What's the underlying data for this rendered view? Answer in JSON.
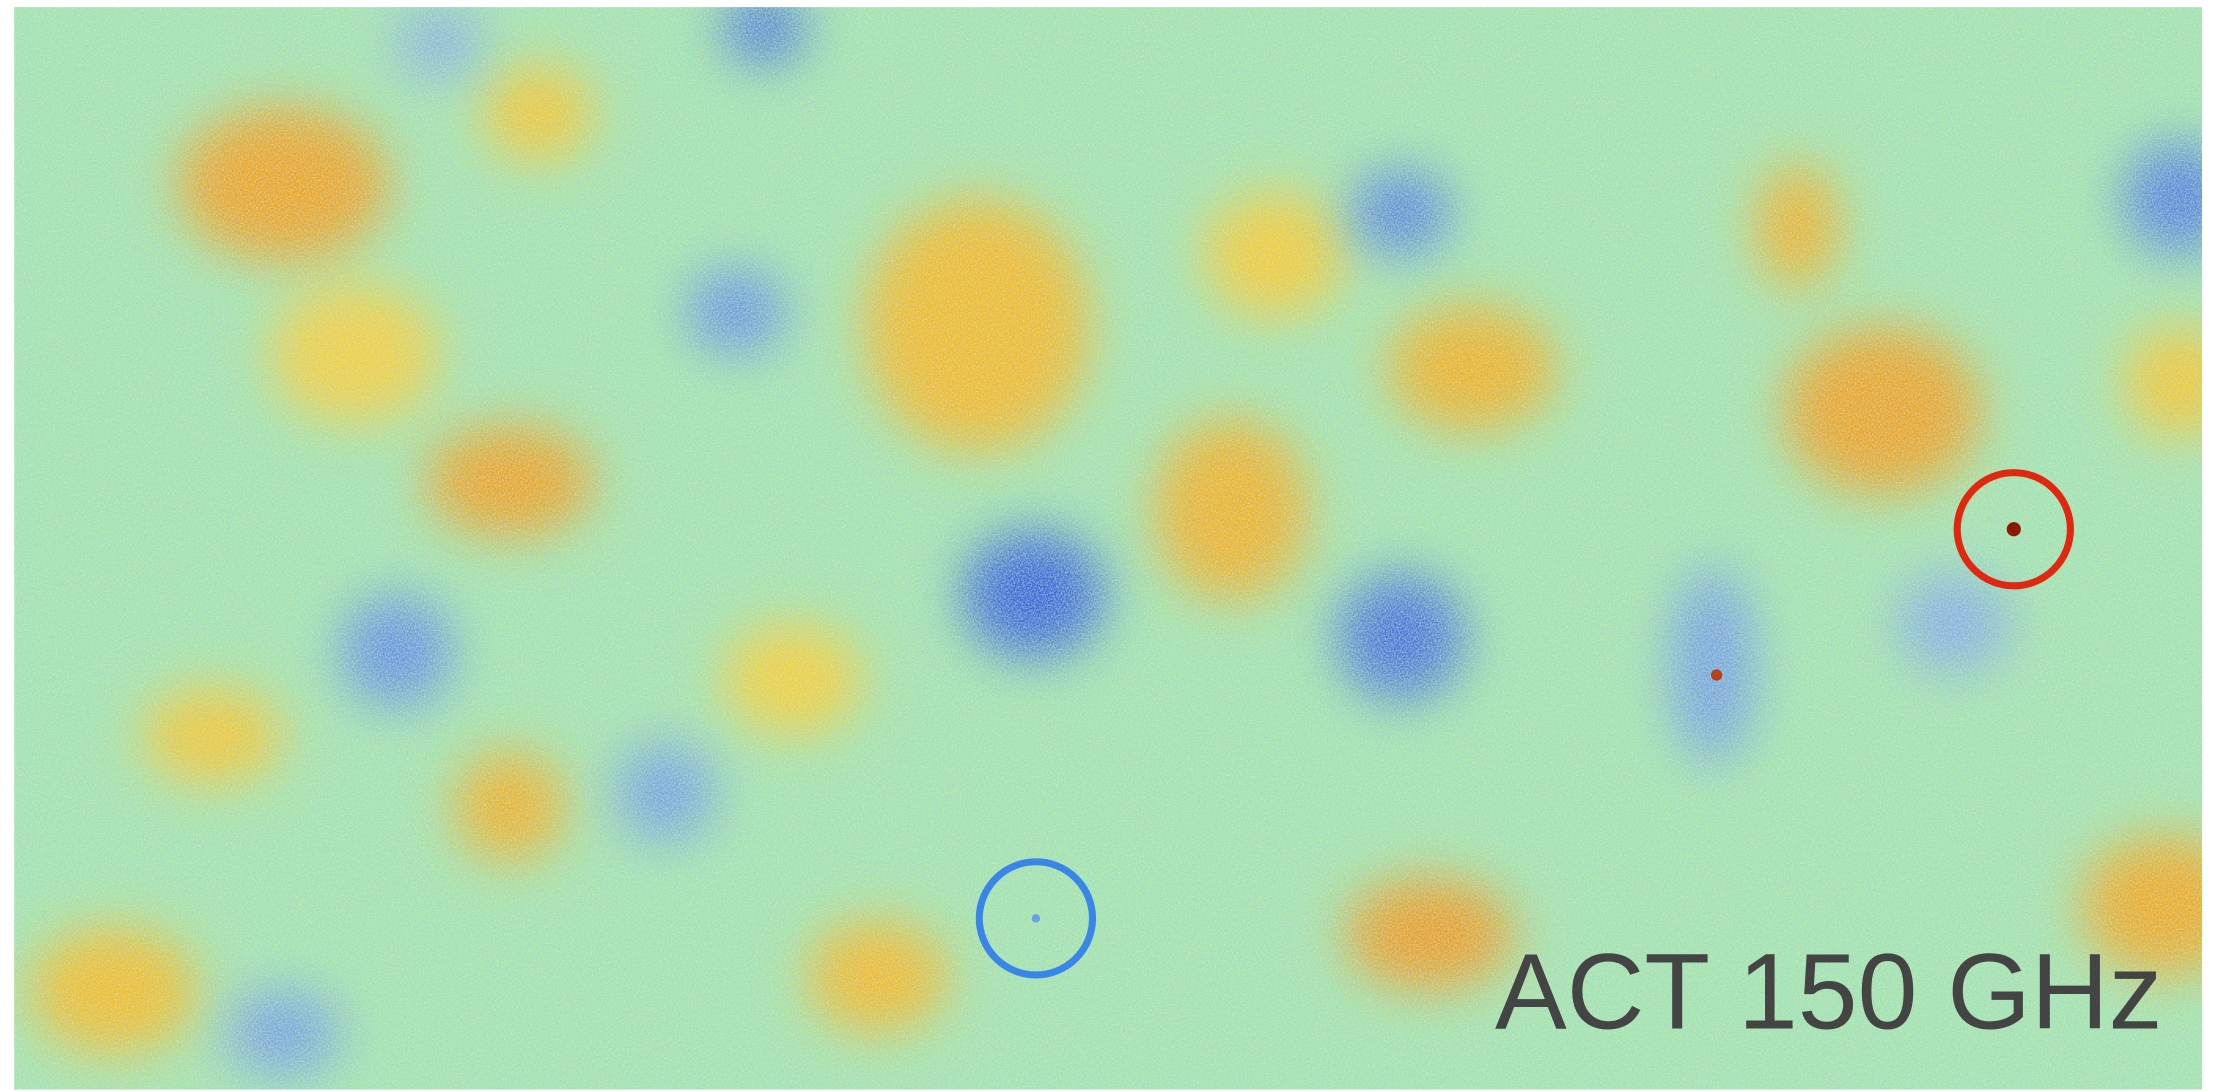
{
  "label": "ACT 150 GHz"
}
